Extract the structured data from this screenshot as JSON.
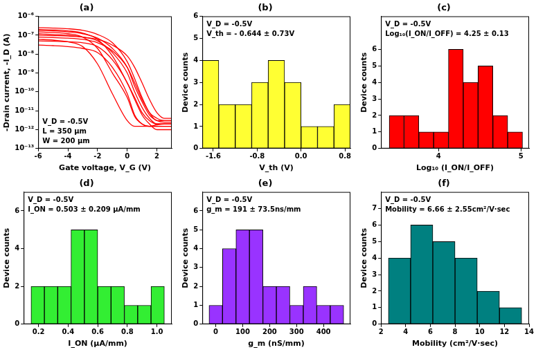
{
  "chart_data": [
    {
      "type": "line",
      "title": "(a)",
      "x_label": "Gate voltage, V_G (V)",
      "y_label": "-Drain current, -I_D (A)",
      "annotations": [
        "V_D = -0.5V",
        "L = 350 μm",
        "W = 200 μm"
      ],
      "log": "y",
      "grid": false,
      "x": [
        -6,
        -5,
        -4,
        -3,
        -2,
        -1,
        0,
        0.5,
        1,
        1.5,
        2,
        2.5,
        3
      ],
      "series": [
        {
          "color": "#ff0000",
          "values": [
            2e-07,
            1.9e-07,
            1.7e-07,
            1.3e-07,
            6e-08,
            8e-09,
            3e-10,
            5e-11,
            8e-12,
            3e-12,
            2e-12,
            2e-12,
            2e-12
          ]
        },
        {
          "color": "#ff0000",
          "values": [
            1.5e-07,
            1.4e-07,
            1.2e-07,
            8e-08,
            2e-08,
            1e-09,
            5e-11,
            5e-12,
            2e-12,
            1.5e-12,
            1.5e-12,
            1.5e-12,
            1.5e-12
          ]
        },
        {
          "color": "#ff0000",
          "values": [
            2.5e-07,
            2.4e-07,
            2.2e-07,
            1.8e-07,
            1.1e-07,
            4e-08,
            4e-09,
            5e-10,
            5e-11,
            8e-12,
            4e-12,
            3e-12,
            3e-12
          ]
        },
        {
          "color": "#ff0000",
          "values": [
            1e-07,
            9.5e-08,
            9e-08,
            8e-08,
            6e-08,
            3e-08,
            8e-09,
            2e-09,
            3e-10,
            4e-11,
            8e-12,
            4e-12,
            4e-12
          ]
        },
        {
          "color": "#ff0000",
          "values": [
            5e-08,
            4.8e-08,
            4.5e-08,
            4e-08,
            2.5e-08,
            5e-09,
            3e-10,
            4e-11,
            6e-12,
            2e-12,
            1e-12,
            1e-12,
            1e-12
          ]
        },
        {
          "color": "#ff0000",
          "values": [
            3e-08,
            2.8e-08,
            2.5e-08,
            2e-08,
            1.2e-08,
            2e-09,
            8e-11,
            6e-12,
            2e-12,
            1.5e-12,
            1.8e-12,
            2e-12,
            2e-12
          ]
        },
        {
          "color": "#ff0000",
          "values": [
            1.8e-07,
            1.7e-07,
            1.5e-07,
            1.2e-07,
            7e-08,
            2e-08,
            2e-09,
            2e-10,
            3e-11,
            6e-12,
            3e-12,
            2.5e-12,
            2.5e-12
          ]
        },
        {
          "color": "#ff0000",
          "values": [
            1.2e-07,
            1.1e-07,
            1e-07,
            8e-08,
            5e-08,
            1.2e-08,
            1e-09,
            1e-10,
            1.5e-11,
            4e-12,
            2e-12,
            2e-12,
            2e-12
          ]
        },
        {
          "color": "#ff0000",
          "values": [
            8e-08,
            7.5e-08,
            7e-08,
            6e-08,
            4e-08,
            1.5e-08,
            2e-09,
            3e-10,
            4e-11,
            8e-12,
            3e-12,
            3e-12,
            3e-12
          ]
        },
        {
          "color": "#ff0000",
          "values": [
            6e-08,
            5.5e-08,
            4.5e-08,
            2.5e-08,
            3e-09,
            8e-11,
            3e-12,
            1.5e-12,
            1.5e-12,
            1.5e-12,
            1.5e-12,
            1.5e-12,
            1.5e-12
          ]
        }
      ],
      "xlim": [
        -6,
        3
      ],
      "xticks": [
        -6,
        -4,
        -2,
        0,
        2
      ],
      "ylim": [
        1e-13,
        1e-06
      ],
      "yticks": [
        {
          "value": 1e-13,
          "label": "10⁻¹³"
        },
        {
          "value": 1e-12,
          "label": "10⁻¹²"
        },
        {
          "value": 1e-11,
          "label": "10⁻¹¹"
        },
        {
          "value": 1e-10,
          "label": "10⁻¹⁰"
        },
        {
          "value": 1e-09,
          "label": "10⁻⁹"
        },
        {
          "value": 1e-08,
          "label": "10⁻⁸"
        },
        {
          "value": 1e-07,
          "label": "10⁻⁷"
        },
        {
          "value": 1e-06,
          "label": "10⁻⁶"
        }
      ]
    },
    {
      "type": "histogram",
      "title": "(b)",
      "x_label": "V_th (V)",
      "y_label": "Device counts",
      "annotations": [
        "V_D = -0.5V",
        "V_th = - 0.644 ± 0.73V"
      ],
      "grid": false,
      "color": "#ffff33",
      "bins": [
        -1.8,
        -1.5,
        -1.2,
        -0.9,
        -0.6,
        -0.3,
        0,
        0.3,
        0.6,
        0.9
      ],
      "counts": [
        4,
        2,
        2,
        3,
        4,
        3,
        1,
        1,
        2
      ],
      "xlim": [
        -1.8,
        0.9
      ],
      "xticks": [
        -1.6,
        -0.8,
        {
          "value": 0,
          "label": "0.0"
        },
        0.8
      ],
      "ylim": [
        0,
        6
      ],
      "yticks": [
        0,
        1,
        2,
        3,
        4,
        5,
        6
      ]
    },
    {
      "type": "histogram",
      "title": "(c)",
      "x_label": "Log₁₀ (I_ON/I_OFF)",
      "y_label": "Device counts",
      "annotations": [
        "V_D = -0.5V",
        "Log₁₀(I_ON/I_OFF) = 4.25 ± 0.13"
      ],
      "grid": false,
      "color": "#ff0000",
      "bins": [
        3.4,
        3.58,
        3.76,
        3.94,
        4.12,
        4.3,
        4.48,
        4.66,
        4.84,
        5.02
      ],
      "counts": [
        2,
        2,
        1,
        1,
        6,
        4,
        5,
        2,
        1
      ],
      "xlim": [
        3.3,
        5.1
      ],
      "xticks": [
        4,
        5
      ],
      "ylim": [
        0,
        8
      ],
      "yticks": [
        0,
        1,
        2,
        3,
        4,
        5,
        6
      ]
    },
    {
      "type": "histogram",
      "title": "(d)",
      "x_label": "I_ON (μA/mm)",
      "y_label": "Device counts",
      "annotations": [
        "V_D = -0.5V",
        "I_ON = 0.503 ± 0.209 μA/mm"
      ],
      "grid": false,
      "color": "#33ee33",
      "bins": [
        0.15,
        0.24,
        0.33,
        0.42,
        0.51,
        0.6,
        0.69,
        0.78,
        0.87,
        0.96,
        1.05
      ],
      "counts": [
        2,
        2,
        2,
        5,
        5,
        2,
        2,
        1,
        1,
        2
      ],
      "xlim": [
        0.1,
        1.1
      ],
      "xticks": [
        0.2,
        0.4,
        0.6,
        0.8,
        {
          "value": 1,
          "label": "1.0"
        }
      ],
      "ylim": [
        0,
        7
      ],
      "yticks": [
        0,
        2,
        4,
        6
      ]
    },
    {
      "type": "histogram",
      "title": "(e)",
      "x_label": "g_m (nS/mm)",
      "y_label": "Device counts",
      "annotations": [
        "V_D = -0.5V",
        "g_m = 191 ± 73.5ns/mm"
      ],
      "grid": false,
      "color": "#9933ff",
      "bins": [
        -25,
        25,
        75,
        125,
        175,
        225,
        275,
        325,
        375,
        425,
        475
      ],
      "counts": [
        1,
        4,
        5,
        5,
        2,
        2,
        1,
        2,
        1,
        1
      ],
      "xlim": [
        -50,
        500
      ],
      "xticks": [
        0,
        100,
        200,
        300,
        400
      ],
      "ylim": [
        0,
        7
      ],
      "yticks": [
        0,
        1,
        2,
        3,
        4,
        5,
        6
      ]
    },
    {
      "type": "histogram",
      "title": "(f)",
      "x_label": "Mobility (cm²/V·sec)",
      "y_label": "Device counts",
      "annotations": [
        "V_D = -0.5V",
        "Mobility = 6.66 ± 2.55cm²/V·sec"
      ],
      "grid": false,
      "color": "#008080",
      "bins": [
        2.6,
        4.4,
        6.2,
        8,
        9.8,
        11.6,
        13.4
      ],
      "counts": [
        4,
        6,
        5,
        4,
        2,
        1
      ],
      "xlim": [
        2,
        14
      ],
      "xticks": [
        2,
        4,
        6,
        8,
        10,
        12,
        14
      ],
      "ylim": [
        0,
        8
      ],
      "yticks": [
        0,
        1,
        2,
        3,
        4,
        5,
        6,
        7
      ]
    }
  ]
}
